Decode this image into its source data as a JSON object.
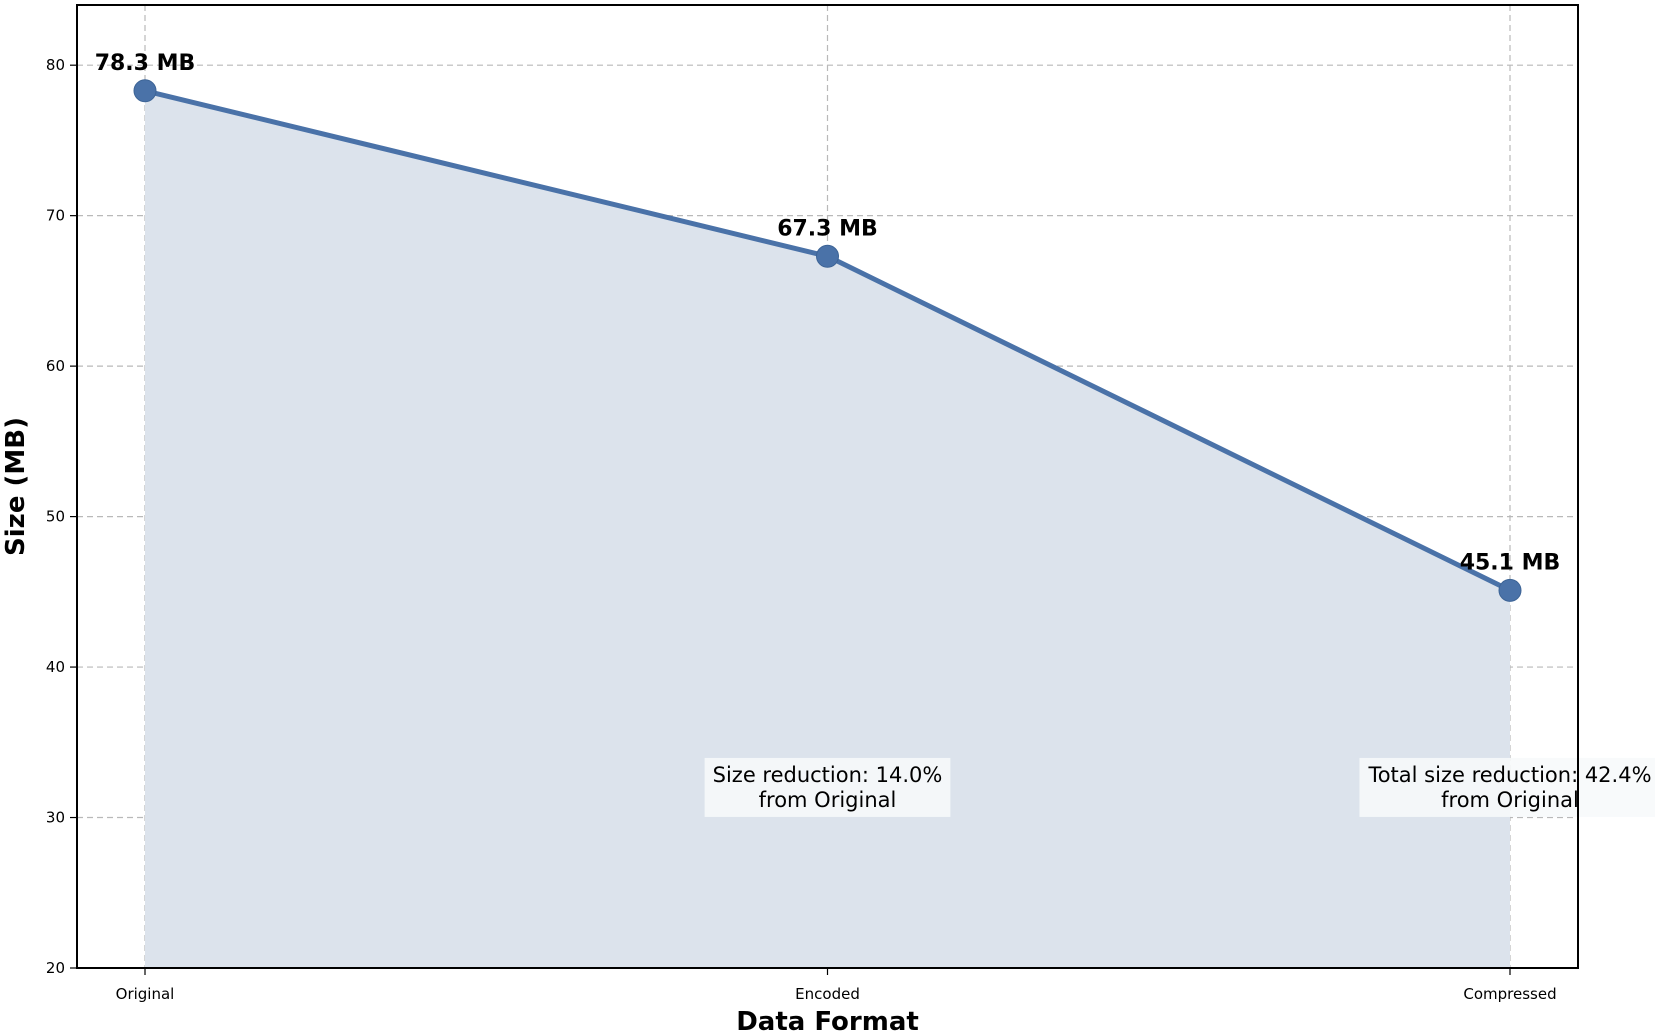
{
  "chart_data": {
    "type": "area",
    "title": "",
    "xlabel": "Data Format",
    "ylabel": "Size (MB)",
    "categories": [
      "Original",
      "Encoded",
      "Compressed"
    ],
    "series": [
      {
        "values": [
          78.3,
          67.3,
          45.1
        ]
      }
    ],
    "data_labels": [
      "78.3 MB",
      "67.3 MB",
      "45.1 MB"
    ],
    "ylim": [
      20,
      84
    ],
    "yticks": [
      20,
      30,
      40,
      50,
      60,
      70,
      80
    ],
    "grid": true,
    "annotations": [
      {
        "category": "Encoded",
        "y": 32,
        "lines": [
          "Size reduction: 14.0%",
          "from Original"
        ]
      },
      {
        "category": "Compressed",
        "y": 32,
        "lines": [
          "Total size reduction: 42.4%",
          "from Original"
        ]
      }
    ],
    "colors": {
      "line": "#4a72a8",
      "marker": "#4a72a8",
      "fill": "#dce3ec",
      "grid": "#b9b9b9",
      "annotation_box": "#f7f9fb"
    }
  }
}
